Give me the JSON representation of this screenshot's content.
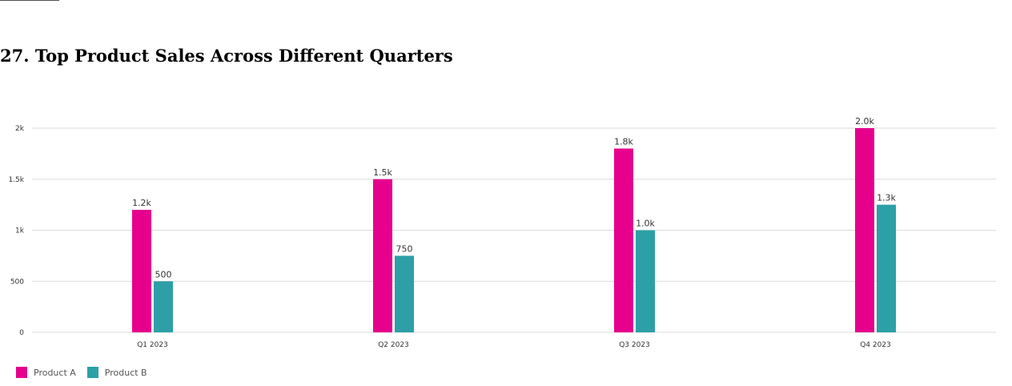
{
  "page": {
    "title": "27. Top Product Sales Across Different Quarters"
  },
  "chart_data": {
    "type": "bar",
    "title": "27. Top Product Sales Across Different Quarters",
    "categories": [
      "Q1 2023",
      "Q2 2023",
      "Q3 2023",
      "Q4 2023"
    ],
    "series": [
      {
        "name": "Product A",
        "color": "#e6008b",
        "values": [
          1200,
          1500,
          1800,
          2000
        ],
        "data_labels": [
          "1.2k",
          "1.5k",
          "1.8k",
          "2.0k"
        ]
      },
      {
        "name": "Product B",
        "color": "#2ca0a6",
        "values": [
          500,
          750,
          1000,
          1250
        ],
        "data_labels": [
          "500",
          "750",
          "1.0k",
          "1.3k"
        ]
      }
    ],
    "ylim": [
      0,
      2000
    ],
    "yticks": [
      {
        "value": 0,
        "label": "0"
      },
      {
        "value": 500,
        "label": "500"
      },
      {
        "value": 1000,
        "label": "1k"
      },
      {
        "value": 1500,
        "label": "1.5k"
      },
      {
        "value": 2000,
        "label": "2k"
      }
    ],
    "xlabel": "",
    "ylabel": "",
    "grid": true,
    "legend_position": "bottom-left"
  }
}
